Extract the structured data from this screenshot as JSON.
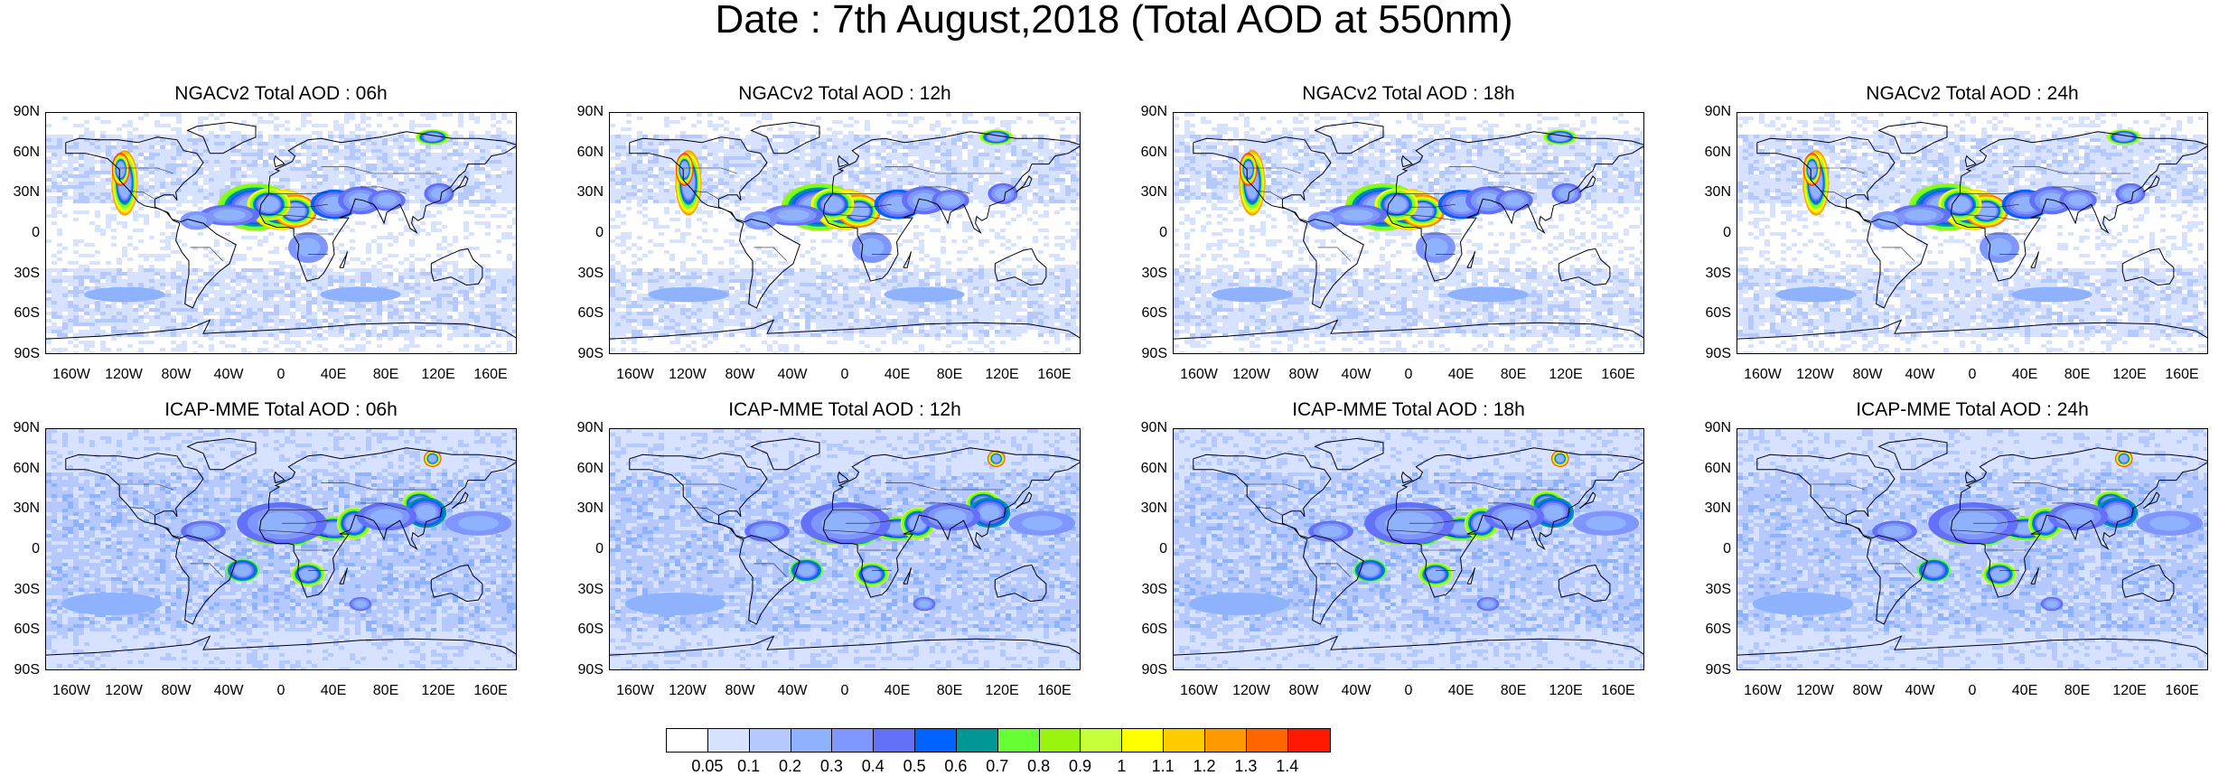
{
  "title": "Date : 7th August,2018 (Total AOD at 550nm)",
  "lat_labels": [
    "90N",
    "60N",
    "30N",
    "0",
    "30S",
    "60S",
    "90S"
  ],
  "lon_labels": [
    "160W",
    "120W",
    "80W",
    "40W",
    "0",
    "40E",
    "80E",
    "120E",
    "160E"
  ],
  "panels": [
    {
      "title": "NGACv2 Total AOD : 06h",
      "model": "NGACv2",
      "hour": "06h"
    },
    {
      "title": "NGACv2 Total AOD : 12h",
      "model": "NGACv2",
      "hour": "12h"
    },
    {
      "title": "NGACv2 Total AOD : 18h",
      "model": "NGACv2",
      "hour": "18h"
    },
    {
      "title": "NGACv2 Total AOD : 24h",
      "model": "NGACv2",
      "hour": "24h"
    },
    {
      "title": "ICAP-MME Total AOD : 06h",
      "model": "ICAP-MME",
      "hour": "06h"
    },
    {
      "title": "ICAP-MME Total AOD : 12h",
      "model": "ICAP-MME",
      "hour": "12h"
    },
    {
      "title": "ICAP-MME Total AOD : 18h",
      "model": "ICAP-MME",
      "hour": "18h"
    },
    {
      "title": "ICAP-MME Total AOD : 24h",
      "model": "ICAP-MME",
      "hour": "24h"
    }
  ],
  "colorbar": {
    "colors": [
      "#ffffff",
      "#d6e2ff",
      "#b5c9ff",
      "#8fb2ff",
      "#7f96ff",
      "#6370f8",
      "#0063ff",
      "#009696",
      "#66ff33",
      "#99f50d",
      "#c5ff3a",
      "#ffff00",
      "#ffcc00",
      "#ff9900",
      "#ff6600",
      "#ff1900"
    ],
    "labels": [
      "0.05",
      "0.1",
      "0.2",
      "0.3",
      "0.4",
      "0.5",
      "0.6",
      "0.7",
      "0.8",
      "0.9",
      "1",
      "1.1",
      "1.2",
      "1.3",
      "1.4"
    ]
  }
}
